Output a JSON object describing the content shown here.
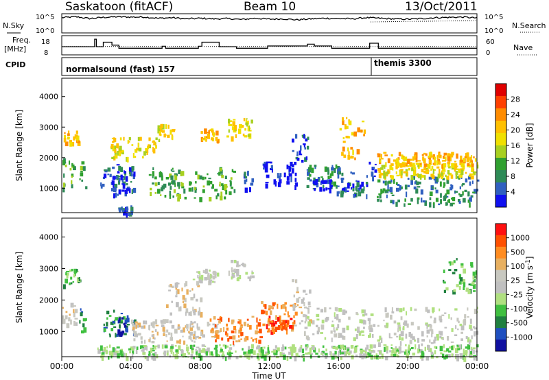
{
  "header": {
    "station": "Saskatoon (fitACF)",
    "beam": "Beam 10",
    "date": "13/Oct/2011"
  },
  "noise_panel": {
    "left_label": "N.Sky",
    "right_label": "N.Search",
    "left_ticks": [
      "10^5",
      "10^0"
    ],
    "right_ticks": [
      "10^5",
      "10^0"
    ],
    "sky_level_log10": [
      4.6,
      4.9,
      4.3,
      4.7,
      4.9,
      4.8,
      4.8,
      4.4,
      4.6,
      4.2,
      4.4,
      4.2,
      4.3,
      4.0,
      4.4,
      4.1,
      4.2,
      3.9,
      4.2,
      4.4,
      4.3,
      4.2,
      4.6,
      4.4,
      4.2,
      4.1,
      4.3,
      4.6,
      4.7,
      4.8,
      4.5
    ]
  },
  "freq_panel": {
    "left_label_line1": "Freq.",
    "left_label_line2": "[MHz]",
    "right_label": "Nave",
    "left_ticks": [
      "18",
      "8"
    ],
    "right_ticks": [
      "60",
      "0"
    ],
    "freq_steps": [
      {
        "t": 0.0,
        "mhz": 12.5
      },
      {
        "t": 1.9,
        "mhz": 17.5
      },
      {
        "t": 2.0,
        "mhz": 12.5
      },
      {
        "t": 2.4,
        "mhz": 15.5
      },
      {
        "t": 2.9,
        "mhz": 13.5
      },
      {
        "t": 3.3,
        "mhz": 11.5
      },
      {
        "t": 5.8,
        "mhz": 12.8
      },
      {
        "t": 6.0,
        "mhz": 11.5
      },
      {
        "t": 7.9,
        "mhz": 12.8
      },
      {
        "t": 8.1,
        "mhz": 15.5
      },
      {
        "t": 9.1,
        "mhz": 12.5
      },
      {
        "t": 10.1,
        "mhz": 11.5
      },
      {
        "t": 11.9,
        "mhz": 13.0
      },
      {
        "t": 14.2,
        "mhz": 14.2
      },
      {
        "t": 14.6,
        "mhz": 13.0
      },
      {
        "t": 15.6,
        "mhz": 11.5
      },
      {
        "t": 17.8,
        "mhz": 14.8
      },
      {
        "t": 18.3,
        "mhz": 11.5
      },
      {
        "t": 24.0,
        "mhz": 11.5
      }
    ],
    "nave_level": 28
  },
  "cpid": {
    "label": "CPID",
    "programs": [
      {
        "name": "normalsound (fast) 157",
        "start_ut": 0.0
      },
      {
        "name": "themis 3300",
        "start_ut": 18.0
      }
    ]
  },
  "chart_data": [
    {
      "type": "heatmap",
      "panel": "power",
      "ylabel": "Slant Range [km]",
      "yticks": [
        1000,
        2000,
        3000,
        4000
      ],
      "ylim": [
        200,
        4600
      ],
      "xlim": [
        0,
        24
      ],
      "colorbar_label": "Power [dB]",
      "colorbar_ticks": [
        "28",
        "24",
        "20",
        "16",
        "12",
        "8",
        "4"
      ],
      "colors": [
        "#e00000",
        "#ff4000",
        "#ff8c00",
        "#ffc000",
        "#f0e000",
        "#a8d020",
        "#30a030",
        "#2e8b57",
        "#3060c0",
        "#1010f0"
      ],
      "regions": [
        {
          "t": [
            0.0,
            0.8
          ],
          "r": [
            1000,
            2000
          ],
          "level": 6
        },
        {
          "t": [
            0.0,
            1.0
          ],
          "r": [
            2500,
            2900
          ],
          "level": 3
        },
        {
          "t": [
            1.0,
            1.4
          ],
          "r": [
            1000,
            1900
          ],
          "level": 6
        },
        {
          "t": [
            2.2,
            4.2
          ],
          "r": [
            900,
            1800
          ],
          "level": 8
        },
        {
          "t": [
            2.8,
            3.8
          ],
          "r": [
            800,
            1600
          ],
          "level": 9
        },
        {
          "t": [
            3.2,
            4.0
          ],
          "r": [
            200,
            500
          ],
          "level": 8
        },
        {
          "t": [
            2.8,
            5.5
          ],
          "r": [
            2000,
            2700
          ],
          "level": 4
        },
        {
          "t": [
            5.5,
            6.5
          ],
          "r": [
            2500,
            3100
          ],
          "level": 4
        },
        {
          "t": [
            5.0,
            10.0
          ],
          "r": [
            700,
            1700
          ],
          "level": 6
        },
        {
          "t": [
            8.0,
            9.0
          ],
          "r": [
            2600,
            3000
          ],
          "level": 3
        },
        {
          "t": [
            9.5,
            11.0
          ],
          "r": [
            2700,
            3300
          ],
          "level": 4
        },
        {
          "t": [
            10.5,
            11.0
          ],
          "r": [
            1000,
            1600
          ],
          "level": 8
        },
        {
          "t": [
            11.6,
            13.5
          ],
          "r": [
            1100,
            1900
          ],
          "level": 9
        },
        {
          "t": [
            13.2,
            14.2
          ],
          "r": [
            1900,
            2800
          ],
          "level": 8
        },
        {
          "t": [
            14.0,
            16.0
          ],
          "r": [
            1000,
            1800
          ],
          "level": 7
        },
        {
          "t": [
            14.5,
            15.5
          ],
          "r": [
            1000,
            1400
          ],
          "level": 9
        },
        {
          "t": [
            15.8,
            17.7
          ],
          "r": [
            800,
            1600
          ],
          "level": 8
        },
        {
          "t": [
            16.0,
            17.5
          ],
          "r": [
            2000,
            3400
          ],
          "level": 3
        },
        {
          "t": [
            17.7,
            18.1
          ],
          "r": [
            1300,
            1900
          ],
          "level": 9
        },
        {
          "t": [
            18.2,
            24.0
          ],
          "r": [
            500,
            1400
          ],
          "level": 7
        },
        {
          "t": [
            18.2,
            24.0
          ],
          "r": [
            1400,
            1800
          ],
          "level": 4
        },
        {
          "t": [
            18.2,
            24.0
          ],
          "r": [
            1800,
            2200
          ],
          "level": 3
        }
      ]
    },
    {
      "type": "heatmap",
      "panel": "velocity",
      "ylabel": "Slant Range [km]",
      "yticks": [
        1000,
        2000,
        3000,
        4000
      ],
      "ylim": [
        200,
        4600
      ],
      "xlim": [
        0,
        24
      ],
      "colorbar_label_main": "Velocity",
      "colorbar_label_units": "[m s",
      "colorbar_label_sup": "-1",
      "colorbar_label_close": "]",
      "colorbar_ticks": [
        "1000",
        "500",
        "100",
        "25",
        "-25",
        "-100",
        "-500",
        "-1000"
      ],
      "colors": [
        "#ff1010",
        "#ff5000",
        "#ff8c20",
        "#e8b060",
        "#c8c8c0",
        "#c0c0c0",
        "#b0e080",
        "#40c040",
        "#208040",
        "#2050c0",
        "#1010a0"
      ],
      "regions": [
        {
          "t": [
            0.0,
            0.8
          ],
          "r": [
            1200,
            2000
          ],
          "level": 4
        },
        {
          "t": [
            0.0,
            1.0
          ],
          "r": [
            2500,
            3000
          ],
          "level": 7
        },
        {
          "t": [
            1.0,
            1.4
          ],
          "r": [
            1000,
            1800
          ],
          "level": 8
        },
        {
          "t": [
            2.4,
            4.2
          ],
          "r": [
            900,
            1700
          ],
          "level": 8
        },
        {
          "t": [
            3.0,
            3.8
          ],
          "r": [
            900,
            1500
          ],
          "level": 9
        },
        {
          "t": [
            2.0,
            24.0
          ],
          "r": [
            200,
            600
          ],
          "level": 6
        },
        {
          "t": [
            4.0,
            9.0
          ],
          "r": [
            700,
            1400
          ],
          "level": 4
        },
        {
          "t": [
            6.0,
            8.0
          ],
          "r": [
            1600,
            2600
          ],
          "level": 4
        },
        {
          "t": [
            7.5,
            9.0
          ],
          "r": [
            2600,
            3000
          ],
          "level": 5
        },
        {
          "t": [
            8.5,
            11.5
          ],
          "r": [
            700,
            1500
          ],
          "level": 2
        },
        {
          "t": [
            11.5,
            13.6
          ],
          "r": [
            1100,
            2000
          ],
          "level": 2
        },
        {
          "t": [
            11.8,
            13.2
          ],
          "r": [
            1000,
            1500
          ],
          "level": 1
        },
        {
          "t": [
            9.5,
            11.0
          ],
          "r": [
            2700,
            3300
          ],
          "level": 5
        },
        {
          "t": [
            13.2,
            14.5
          ],
          "r": [
            1200,
            2700
          ],
          "level": 4
        },
        {
          "t": [
            14.0,
            18.0
          ],
          "r": [
            800,
            1800
          ],
          "level": 5
        },
        {
          "t": [
            18.2,
            24.0
          ],
          "r": [
            600,
            1800
          ],
          "level": 5
        },
        {
          "t": [
            22.0,
            24.0
          ],
          "r": [
            2300,
            3400
          ],
          "level": 7
        }
      ]
    }
  ],
  "xaxis": {
    "label": "Time UT",
    "ticks": [
      "00:00",
      "04:00",
      "08:00",
      "12:00",
      "16:00",
      "20:00",
      "00:00"
    ]
  }
}
